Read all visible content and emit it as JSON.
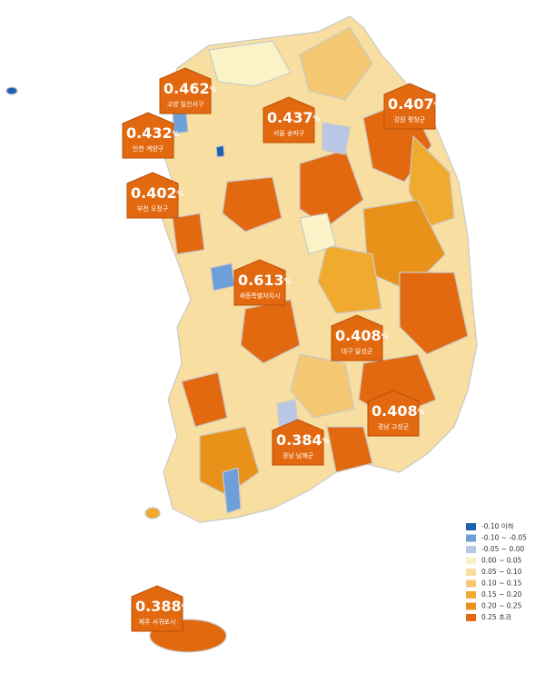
{
  "callouts": [
    {
      "value": 0.462,
      "unit": "%",
      "label": "고양 일산서구"
    },
    {
      "value": 0.432,
      "unit": "%",
      "label": "인천 계양구"
    },
    {
      "value": 0.402,
      "unit": "%",
      "label": "부천 오정구"
    },
    {
      "value": 0.437,
      "unit": "%",
      "label": "서울 송파구"
    },
    {
      "value": 0.407,
      "unit": "%",
      "label": "강원 평창군"
    },
    {
      "value": 0.613,
      "unit": "%",
      "label": "세종특별자치시"
    },
    {
      "value": 0.408,
      "unit": "%",
      "label": "대구 달성군"
    },
    {
      "value": 0.408,
      "unit": "%",
      "label": "경남 고성군"
    },
    {
      "value": 0.384,
      "unit": "%",
      "label": "경남 남해군"
    },
    {
      "value": 0.388,
      "unit": "%",
      "label": "제주 서귀포시"
    }
  ],
  "legend": {
    "items": [
      {
        "label": "-0.10 이하",
        "color": "#1f5fb0"
      },
      {
        "label": "-0.10 ~ -0.05",
        "color": "#6f9fd8"
      },
      {
        "label": "-0.05 ~ 0.00",
        "color": "#b9c6e6"
      },
      {
        "label": "0.00 ~ 0.05",
        "color": "#fbf3c8"
      },
      {
        "label": "0.05 ~ 0.10",
        "color": "#f8dea0"
      },
      {
        "label": "0.10 ~ 0.15",
        "color": "#f4c872"
      },
      {
        "label": "0.15 ~ 0.20",
        "color": "#f0aa2e"
      },
      {
        "label": "0.20 ~ 0.25",
        "color": "#e8921a"
      },
      {
        "label": "0.25 초과",
        "color": "#e2690f"
      }
    ]
  }
}
